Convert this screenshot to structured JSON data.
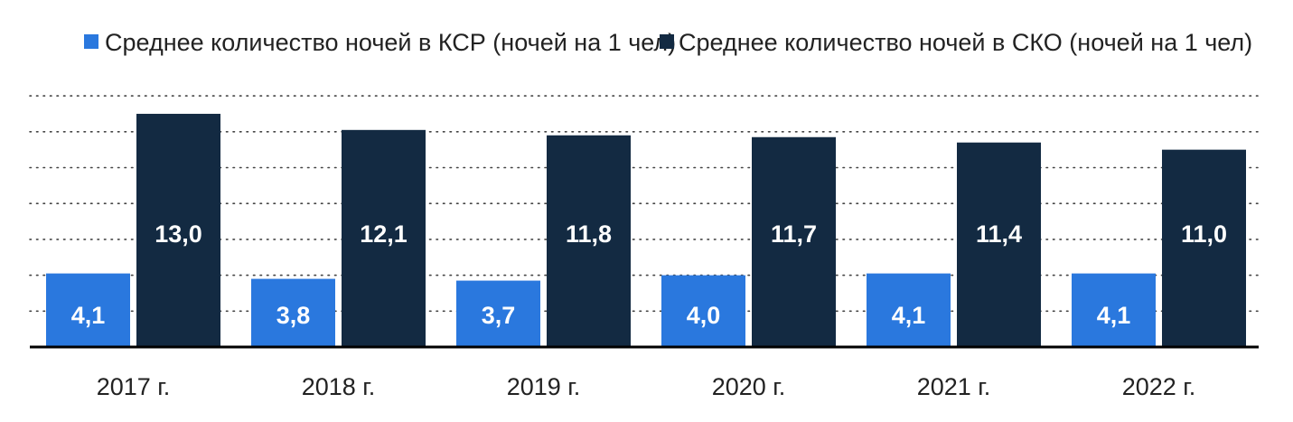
{
  "chart_data": {
    "type": "bar",
    "categories": [
      "2017 г.",
      "2018 г.",
      "2019 г.",
      "2020 г.",
      "2021 г.",
      "2022 г."
    ],
    "series": [
      {
        "name": "Среднее количество ночей в КСР (ночей на 1 чел)",
        "values": [
          4.1,
          3.8,
          3.7,
          4.0,
          4.1,
          4.1
        ],
        "labels": [
          "4,1",
          "3,8",
          "3,7",
          "4,0",
          "4,1",
          "4,1"
        ],
        "color": "#2a78de"
      },
      {
        "name": "Среднее количество ночей в СКО (ночей на 1 чел)",
        "values": [
          13.0,
          12.1,
          11.8,
          11.7,
          11.4,
          11.0
        ],
        "labels": [
          "13,0",
          "12,1",
          "11,8",
          "11,7",
          "11,4",
          "11,0"
        ],
        "color": "#132a42"
      }
    ],
    "ylim": [
      0,
      14
    ],
    "grid": true,
    "legend_position": "top"
  }
}
